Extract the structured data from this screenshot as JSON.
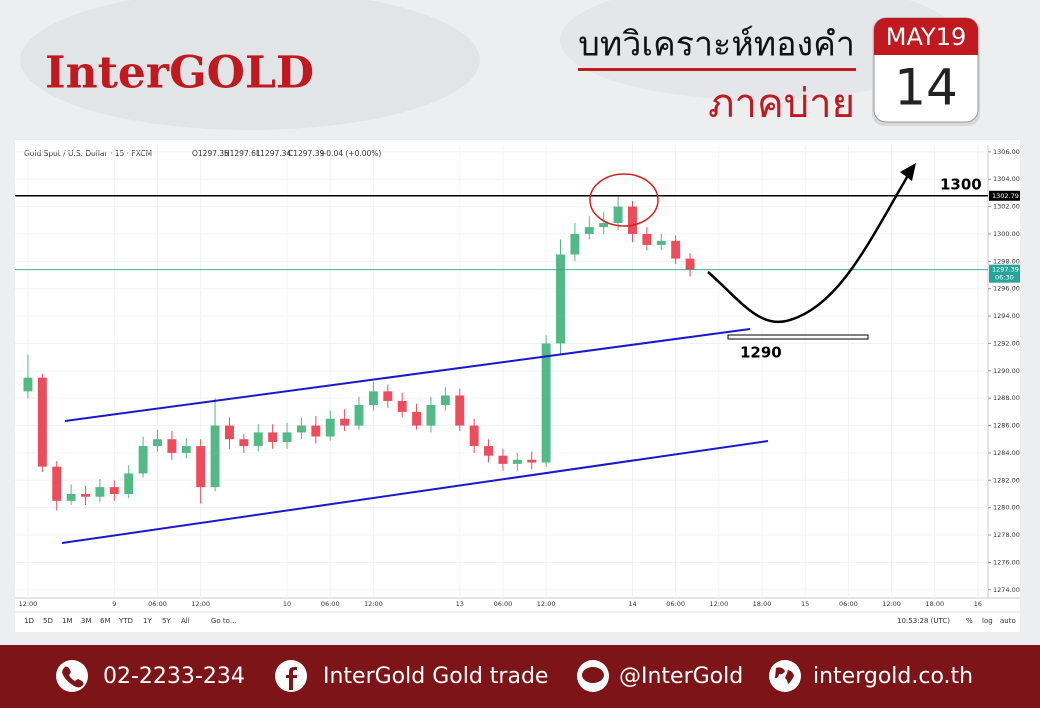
{
  "header": {
    "brand": "InterGOLD",
    "title": "บทวิเคราะห์ทองคำ",
    "subtitle": "ภาคบ่าย",
    "calendar": {
      "month": "MAY19",
      "day": "14"
    }
  },
  "chart_data": {
    "type": "candlestick",
    "symbol": "Gold Spot / U.S. Dollar · 15 · FXCM",
    "ohlc_legend": [
      "O1297.35",
      "H1297.61",
      "L1297.34",
      "C1297.39",
      "+0.04 (+0.00%)"
    ],
    "x": [
      0,
      2,
      4,
      6,
      8,
      10,
      12,
      14,
      16,
      18,
      20,
      22,
      24,
      26,
      28,
      30,
      32,
      34,
      36,
      38,
      40,
      42,
      44,
      46,
      48,
      50,
      52,
      54,
      56,
      58,
      60,
      62,
      64,
      66,
      68,
      70,
      72,
      74,
      76,
      78,
      80,
      82,
      84,
      86,
      88,
      90,
      92
    ],
    "open": [
      1288.5,
      1289.5,
      1283,
      1280.5,
      1281,
      1280.8,
      1281.5,
      1281,
      1282.5,
      1284.5,
      1285,
      1284,
      1284.5,
      1281.5,
      1286,
      1285,
      1284.5,
      1285.5,
      1284.8,
      1285.5,
      1286,
      1285.2,
      1286.5,
      1286,
      1287.5,
      1288.5,
      1287.8,
      1287,
      1286,
      1287.5,
      1288.2,
      1286,
      1284.5,
      1283.8,
      1283.2,
      1283.5,
      1283.3,
      1292,
      1298.5,
      1300,
      1300.5,
      1300.8,
      1302,
      1300,
      1299.2,
      1299.5,
      1298.2
    ],
    "high": [
      1291.2,
      1289.8,
      1283.4,
      1281.7,
      1281.6,
      1282.1,
      1282,
      1283.1,
      1285.2,
      1285.7,
      1285.6,
      1285.1,
      1285,
      1288,
      1286.6,
      1285.4,
      1286.1,
      1286.1,
      1286.2,
      1286.6,
      1286.7,
      1287.1,
      1287.2,
      1288.1,
      1289.2,
      1289,
      1288.4,
      1287.6,
      1288.1,
      1288.8,
      1288.7,
      1286.5,
      1285,
      1284.3,
      1284,
      1284.1,
      1292.6,
      1299.6,
      1300.8,
      1301.3,
      1301.6,
      1302.8,
      1302.4,
      1300.5,
      1300,
      1299.9,
      1298.6
    ],
    "low": [
      1288,
      1282.6,
      1279.8,
      1280.2,
      1280.2,
      1280.4,
      1280.5,
      1280.7,
      1282.2,
      1284.1,
      1283.5,
      1283.6,
      1280.3,
      1281.2,
      1284.3,
      1284,
      1284.1,
      1284.3,
      1284.3,
      1285,
      1284.7,
      1284.9,
      1285.6,
      1285.7,
      1287.1,
      1287.3,
      1286.6,
      1285.7,
      1285.5,
      1287.1,
      1285.6,
      1284,
      1283.3,
      1282.7,
      1282.7,
      1282.8,
      1283,
      1291.2,
      1298,
      1299.6,
      1300,
      1300.3,
      1299.4,
      1298.8,
      1298.8,
      1297.8,
      1296.9
    ],
    "close": [
      1289.5,
      1283,
      1280.5,
      1281,
      1280.8,
      1281.5,
      1281,
      1282.5,
      1284.5,
      1285,
      1284,
      1284.5,
      1281.5,
      1286,
      1285,
      1284.5,
      1285.5,
      1284.8,
      1285.5,
      1286,
      1285.2,
      1286.5,
      1286,
      1287.5,
      1288.5,
      1287.8,
      1287,
      1286,
      1287.5,
      1288.2,
      1286,
      1284.5,
      1283.8,
      1283.2,
      1283.5,
      1283.3,
      1292,
      1298.5,
      1300,
      1300.5,
      1300.8,
      1302,
      1300,
      1299.2,
      1299.5,
      1298.2,
      1297.4
    ],
    "up_color": "#53b987",
    "down_color": "#eb4d5c",
    "xlim": [
      -1.8,
      133.4
    ],
    "ylim": [
      1273.4,
      1306.5
    ],
    "grid": true,
    "xticks": [
      {
        "value": 0,
        "label": "12:00"
      },
      {
        "value": 12,
        "label": "9"
      },
      {
        "value": 18,
        "label": "06:00"
      },
      {
        "value": 24,
        "label": "12:00"
      },
      {
        "value": 36,
        "label": "10"
      },
      {
        "value": 42,
        "label": "06:00"
      },
      {
        "value": 48,
        "label": "12:00"
      },
      {
        "value": 60,
        "label": "13"
      },
      {
        "value": 66,
        "label": "06:00"
      },
      {
        "value": 72,
        "label": "12:00"
      },
      {
        "value": 84,
        "label": "14"
      },
      {
        "value": 90,
        "label": "06:00"
      },
      {
        "value": 96,
        "label": "12:00"
      },
      {
        "value": 102,
        "label": "18:00"
      },
      {
        "value": 108,
        "label": "15"
      },
      {
        "value": 114,
        "label": "06:00"
      },
      {
        "value": 120,
        "label": "12:00"
      },
      {
        "value": 126,
        "label": "18:00"
      },
      {
        "value": 132,
        "label": "16"
      }
    ],
    "yticks": [
      {
        "value": 1274,
        "label": "1274.00"
      },
      {
        "value": 1276,
        "label": "1276.00"
      },
      {
        "value": 1278,
        "label": "1278.00"
      },
      {
        "value": 1280,
        "label": "1280.00"
      },
      {
        "value": 1282,
        "label": "1282.00"
      },
      {
        "value": 1284,
        "label": "1284.00"
      },
      {
        "value": 1286,
        "label": "1286.00"
      },
      {
        "value": 1288,
        "label": "1288.00"
      },
      {
        "value": 1290,
        "label": "1290.00"
      },
      {
        "value": 1292,
        "label": "1292.00"
      },
      {
        "value": 1294,
        "label": "1294.00"
      },
      {
        "value": 1296,
        "label": "1296.00"
      },
      {
        "value": 1298,
        "label": "1298.00"
      },
      {
        "value": 1300,
        "label": "1300.00"
      },
      {
        "value": 1302,
        "label": "1302.00"
      },
      {
        "value": 1304,
        "label": "1304.00"
      },
      {
        "value": 1306,
        "label": "1306.00"
      }
    ],
    "price_lines": [
      {
        "value": 1302.79,
        "label": "1302.79",
        "color": "#000000"
      },
      {
        "value": 1297.39,
        "label": "1297.39",
        "countdown": "06:30",
        "color": "#26a69a"
      }
    ],
    "annotations": [
      "1300",
      "1290"
    ]
  },
  "toolbar": {
    "ranges": [
      "1D",
      "5D",
      "1M",
      "3M",
      "6M",
      "YTD",
      "1Y",
      "5Y",
      "All"
    ],
    "goto": "Go to...",
    "clock": "10:53:28 (UTC)",
    "options": [
      "%",
      "log",
      "auto"
    ]
  },
  "footer": {
    "items": [
      "02-2233-234",
      "InterGold Gold trade",
      "@InterGold",
      "intergold.co.th"
    ]
  }
}
